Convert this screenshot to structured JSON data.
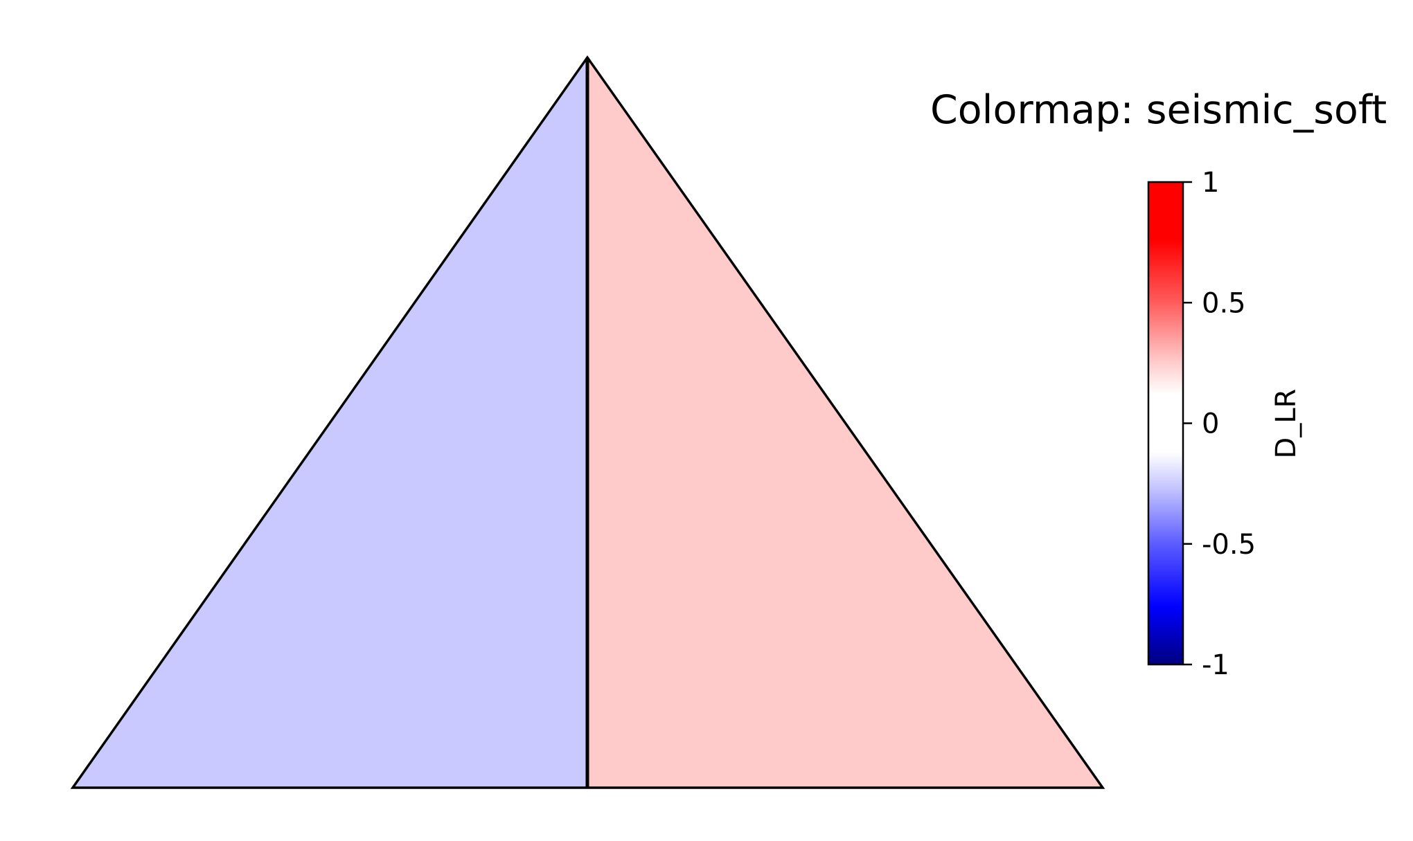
{
  "chart_data": {
    "type": "heatmap",
    "title": "Colormap: seismic_soft",
    "colormap": "seismic_soft",
    "regions": [
      {
        "name": "left",
        "value": -0.2,
        "color": "#c9c9ff"
      },
      {
        "name": "right",
        "value": 0.2,
        "color": "#fecaca"
      }
    ],
    "colorbar": {
      "label": "D_LR",
      "vmin": -1,
      "vmax": 1,
      "ticks": [
        {
          "value": 1,
          "label": "1"
        },
        {
          "value": 0.5,
          "label": "0.5"
        },
        {
          "value": 0,
          "label": "0"
        },
        {
          "value": -0.5,
          "label": "-0.5"
        },
        {
          "value": -1,
          "label": "-1"
        }
      ],
      "colors": {
        "min": "#0000ff",
        "mid": "#ffffff",
        "max": "#ff0000"
      }
    },
    "grid": false,
    "legend": "none"
  }
}
